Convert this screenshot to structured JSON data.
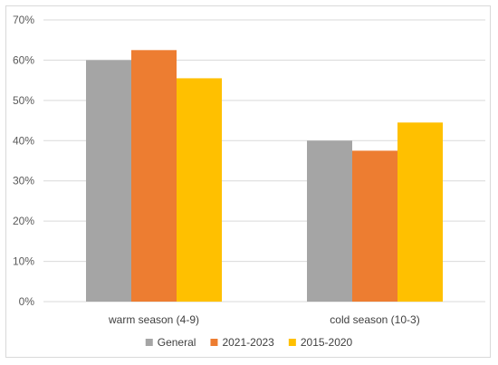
{
  "chart_data": {
    "type": "bar",
    "categories": [
      "warm season (4-9)",
      "cold season (10-3)"
    ],
    "series": [
      {
        "name": "General",
        "values": [
          60,
          40
        ],
        "color": "#a5a5a5"
      },
      {
        "name": "2021-2023",
        "values": [
          62.5,
          37.5
        ],
        "color": "#ed7d31"
      },
      {
        "name": "2015-2020",
        "values": [
          55.5,
          44.5
        ],
        "color": "#ffc000"
      }
    ],
    "y_ticks": [
      "0%",
      "10%",
      "20%",
      "30%",
      "40%",
      "50%",
      "60%",
      "70%"
    ],
    "ylim": [
      0,
      70
    ],
    "y_unit": "%",
    "grid": true,
    "legend_position": "bottom"
  }
}
